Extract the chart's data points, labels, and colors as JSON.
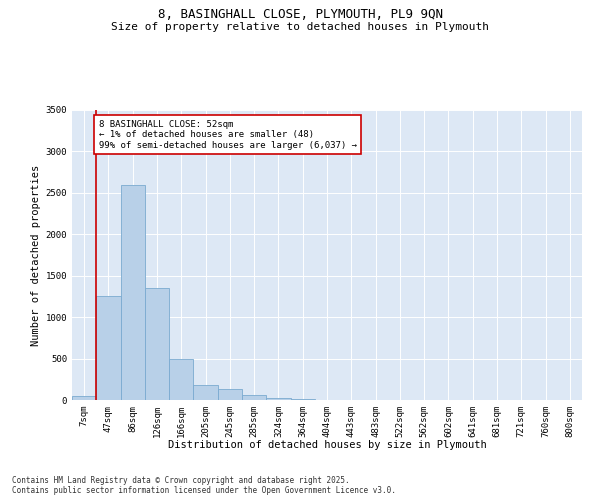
{
  "title_line1": "8, BASINGHALL CLOSE, PLYMOUTH, PL9 9QN",
  "title_line2": "Size of property relative to detached houses in Plymouth",
  "xlabel": "Distribution of detached houses by size in Plymouth",
  "ylabel": "Number of detached properties",
  "categories": [
    "7sqm",
    "47sqm",
    "86sqm",
    "126sqm",
    "166sqm",
    "205sqm",
    "245sqm",
    "285sqm",
    "324sqm",
    "364sqm",
    "404sqm",
    "443sqm",
    "483sqm",
    "522sqm",
    "562sqm",
    "602sqm",
    "641sqm",
    "681sqm",
    "721sqm",
    "760sqm",
    "800sqm"
  ],
  "values": [
    48,
    1250,
    2600,
    1350,
    500,
    185,
    130,
    55,
    30,
    10,
    5,
    2,
    1,
    0,
    0,
    0,
    0,
    0,
    0,
    0,
    0
  ],
  "bar_color": "#b8d0e8",
  "bar_edge_color": "#7aaad0",
  "highlight_line_color": "#cc0000",
  "annotation_text": "8 BASINGHALL CLOSE: 52sqm\n← 1% of detached houses are smaller (48)\n99% of semi-detached houses are larger (6,037) →",
  "annotation_box_color": "#cc0000",
  "annotation_bg_color": "#ffffff",
  "ylim": [
    0,
    3500
  ],
  "yticks": [
    0,
    500,
    1000,
    1500,
    2000,
    2500,
    3000,
    3500
  ],
  "background_color": "#dde8f5",
  "footer_line1": "Contains HM Land Registry data © Crown copyright and database right 2025.",
  "footer_line2": "Contains public sector information licensed under the Open Government Licence v3.0.",
  "title_fontsize": 9,
  "subtitle_fontsize": 8,
  "axis_label_fontsize": 7.5,
  "tick_fontsize": 6.5,
  "annotation_fontsize": 6.5,
  "footer_fontsize": 5.5
}
